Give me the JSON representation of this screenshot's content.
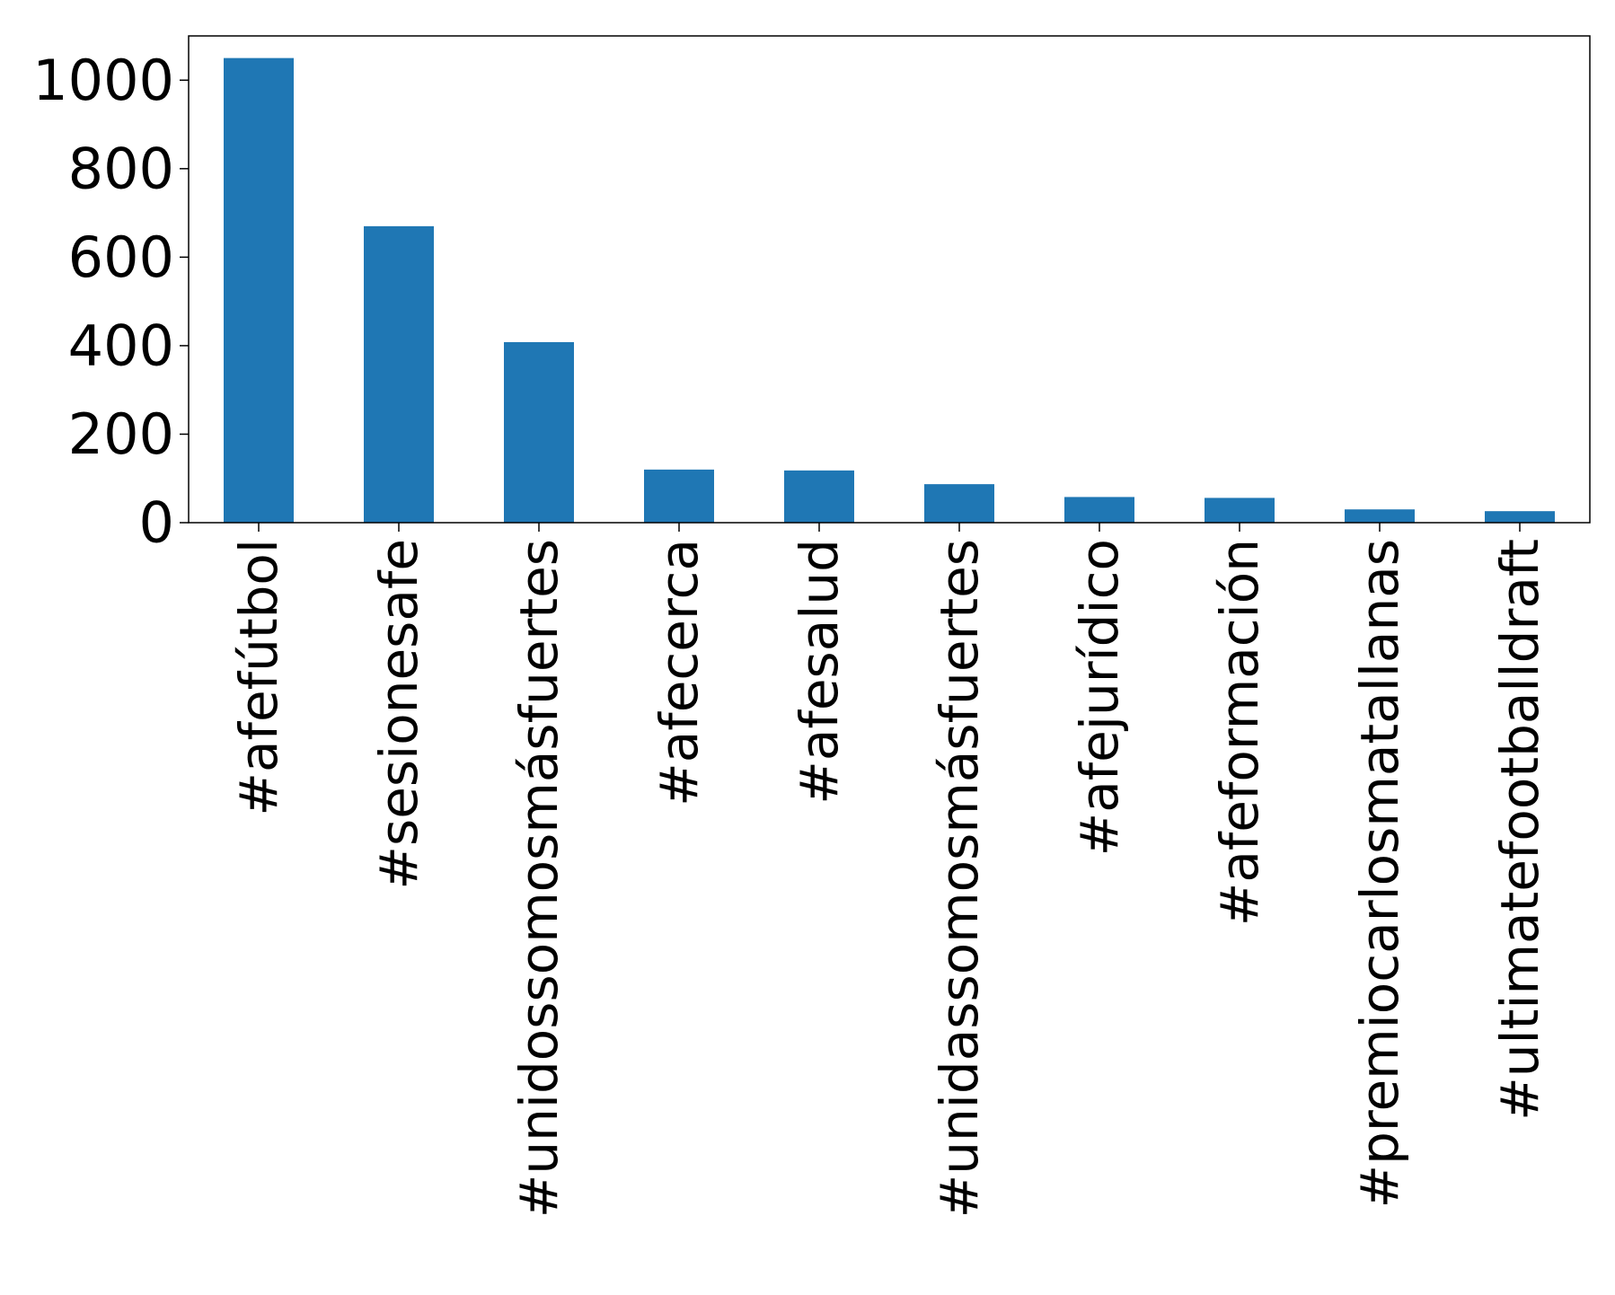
{
  "chart_data": {
    "type": "bar",
    "categories": [
      "#afefútbol",
      "#sesionesafe",
      "#unidossomosmásfuertes",
      "#afecerca",
      "#afesalud",
      "#unidassomosmásfuertes",
      "#afejurídico",
      "#afeformación",
      "#premiocarlosmatallanas",
      "#ultimatefootballdraft"
    ],
    "values": [
      1050,
      670,
      408,
      120,
      118,
      87,
      58,
      56,
      30,
      26
    ],
    "y_ticks": [
      0,
      200,
      400,
      600,
      800,
      1000
    ],
    "ylim": [
      0,
      1100
    ],
    "title": "",
    "xlabel": "",
    "ylabel": "",
    "grid": false,
    "legend": "none",
    "bar_color": "#1f77b4"
  }
}
